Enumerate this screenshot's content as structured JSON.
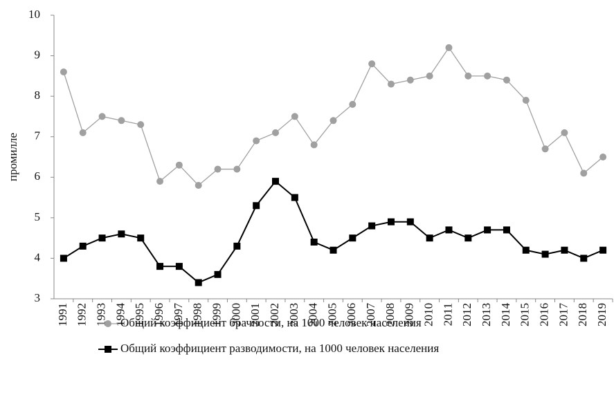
{
  "chart_data": {
    "type": "line",
    "ylabel": "промилле",
    "categories": [
      "1991",
      "1992",
      "1993",
      "1994",
      "1995",
      "1996",
      "1997",
      "1998",
      "1999",
      "2000",
      "2001",
      "2002",
      "2003",
      "2004",
      "2005",
      "2006",
      "2007",
      "2008",
      "2009",
      "2010",
      "2011",
      "2012",
      "2013",
      "2014",
      "2015",
      "2016",
      "2017",
      "2018",
      "2019"
    ],
    "series": [
      {
        "name": "Общий коэффициент брачности, на 1000 человек населения",
        "color": "#a0a0a0",
        "marker": "circle",
        "values": [
          8.6,
          7.1,
          7.5,
          7.4,
          7.3,
          5.9,
          6.3,
          5.8,
          6.2,
          6.2,
          6.9,
          7.1,
          7.5,
          6.8,
          7.4,
          7.8,
          8.8,
          8.3,
          8.4,
          8.5,
          9.2,
          8.5,
          8.5,
          8.4,
          7.9,
          6.7,
          7.1,
          6.1,
          6.5
        ]
      },
      {
        "name": "Общий коэффициент разводимости, на 1000 человек населения",
        "color": "#000000",
        "marker": "square",
        "values": [
          4.0,
          4.3,
          4.5,
          4.6,
          4.5,
          3.8,
          3.8,
          3.4,
          3.6,
          4.3,
          5.3,
          5.9,
          5.5,
          4.4,
          4.2,
          4.5,
          4.8,
          4.9,
          4.9,
          4.5,
          4.7,
          4.5,
          4.7,
          4.7,
          4.2,
          4.1,
          4.2,
          4.0,
          4.2
        ]
      }
    ],
    "ylim": [
      3,
      10
    ],
    "yticks": [
      3,
      4,
      5,
      6,
      7,
      8,
      9,
      10
    ],
    "grid": false
  }
}
